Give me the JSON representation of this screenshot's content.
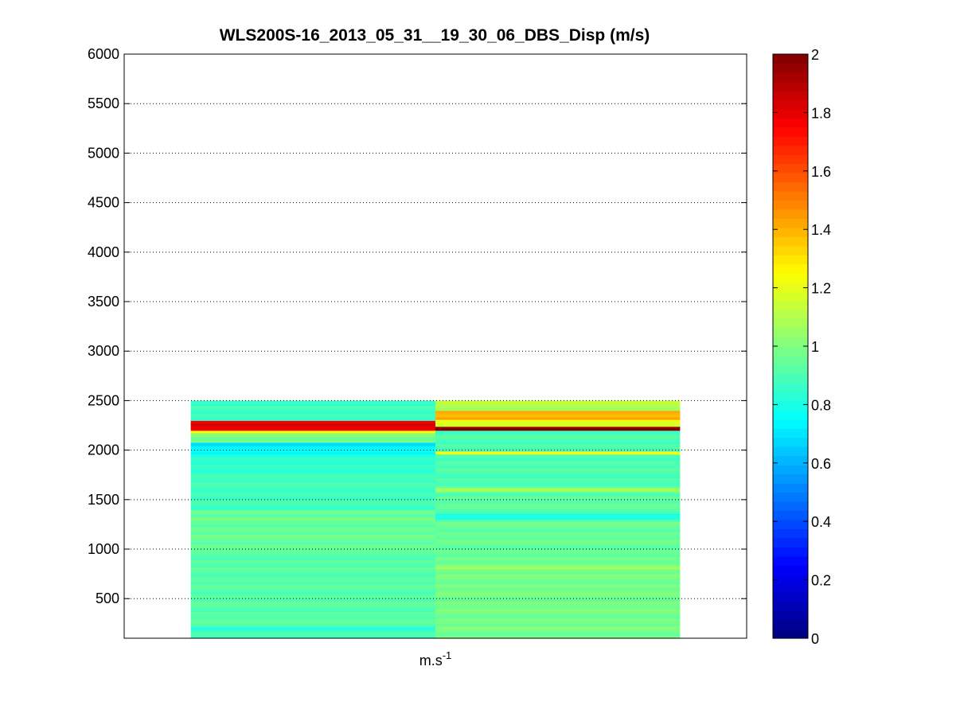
{
  "figure": {
    "background": "#ffffff"
  },
  "chart_data": {
    "type": "heatmap",
    "title": "WLS200S-16_2013_05_31__19_30_06_DBS_Disp (m/s)",
    "xlabel_base": "m.s",
    "xlabel_exp": "-1",
    "ylabel": "",
    "ylim": [
      100,
      6000
    ],
    "yticks": [
      500,
      1000,
      1500,
      2000,
      2500,
      3000,
      3500,
      4000,
      4500,
      5000,
      5500,
      6000
    ],
    "grid": true,
    "colormap": "jet",
    "clim": [
      0,
      2
    ],
    "colorbar_ticks": [
      0,
      0.2,
      0.4,
      0.6,
      0.8,
      1,
      1.2,
      1.4,
      1.6,
      1.8,
      2
    ],
    "altitude_step": 25,
    "columns": [
      {
        "x_range": [
          0,
          1
        ],
        "segments": [
          {
            "from": 100,
            "to": 160,
            "value": 0.9
          },
          {
            "from": 160,
            "to": 220,
            "value": 0.85
          },
          {
            "from": 220,
            "to": 1000,
            "value": 0.92
          },
          {
            "from": 1000,
            "to": 1400,
            "value": 0.95
          },
          {
            "from": 1400,
            "to": 1780,
            "value": 0.88
          },
          {
            "from": 1780,
            "to": 1960,
            "value": 0.84
          },
          {
            "from": 1960,
            "to": 2020,
            "value": 0.75
          },
          {
            "from": 2020,
            "to": 2080,
            "value": 0.7
          },
          {
            "from": 2080,
            "to": 2140,
            "value": 0.98
          },
          {
            "from": 2140,
            "to": 2180,
            "value": 1.05
          },
          {
            "from": 2180,
            "to": 2200,
            "value": 1.2
          },
          {
            "from": 2200,
            "to": 2300,
            "value": 1.8
          },
          {
            "from": 2300,
            "to": 2400,
            "value": 0.86
          },
          {
            "from": 2400,
            "to": 2500,
            "value": 0.88
          }
        ]
      },
      {
        "x_range": [
          1,
          2
        ],
        "segments": [
          {
            "from": 100,
            "to": 800,
            "value": 0.98
          },
          {
            "from": 800,
            "to": 850,
            "value": 1.05
          },
          {
            "from": 850,
            "to": 1300,
            "value": 0.95
          },
          {
            "from": 1300,
            "to": 1360,
            "value": 0.8
          },
          {
            "from": 1360,
            "to": 1580,
            "value": 0.93
          },
          {
            "from": 1580,
            "to": 1620,
            "value": 1.05
          },
          {
            "from": 1620,
            "to": 1960,
            "value": 0.9
          },
          {
            "from": 1960,
            "to": 1990,
            "value": 1.2
          },
          {
            "from": 1990,
            "to": 2160,
            "value": 0.9
          },
          {
            "from": 2160,
            "to": 2200,
            "value": 0.88
          },
          {
            "from": 2200,
            "to": 2240,
            "value": 2.0
          },
          {
            "from": 2240,
            "to": 2310,
            "value": 1.2
          },
          {
            "from": 2310,
            "to": 2400,
            "value": 1.4
          },
          {
            "from": 2400,
            "to": 2500,
            "value": 1.1
          }
        ]
      }
    ]
  }
}
